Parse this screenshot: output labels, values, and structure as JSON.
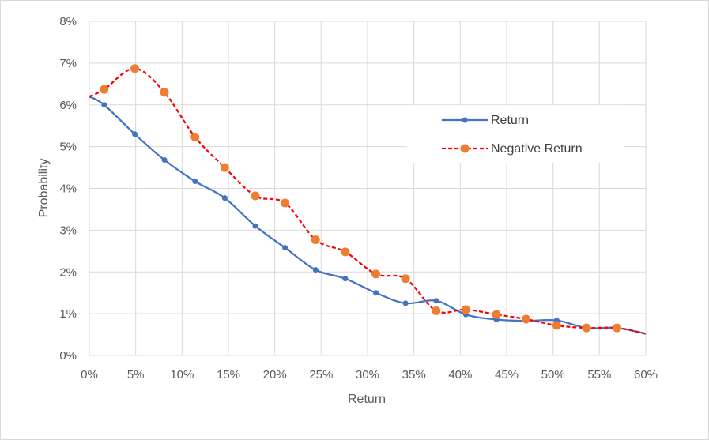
{
  "chart_data": {
    "type": "line",
    "title": "",
    "xlabel": "Return",
    "ylabel": "Probability",
    "xlim": [
      0,
      0.6
    ],
    "ylim": [
      0,
      0.08
    ],
    "x_ticks": [
      0,
      0.05,
      0.1,
      0.15,
      0.2,
      0.25,
      0.3,
      0.35,
      0.4,
      0.45,
      0.5,
      0.55,
      0.6
    ],
    "x_tick_labels": [
      "0%",
      "5%",
      "10%",
      "15%",
      "20%",
      "25%",
      "30%",
      "35%",
      "40%",
      "45%",
      "50%",
      "55%",
      "60%"
    ],
    "y_ticks": [
      0,
      0.01,
      0.02,
      0.03,
      0.04,
      0.05,
      0.06,
      0.07,
      0.08
    ],
    "y_tick_labels": [
      "0%",
      "1%",
      "2%",
      "3%",
      "4%",
      "5%",
      "6%",
      "7%",
      "8%"
    ],
    "grid": true,
    "legend_position": "right",
    "series": [
      {
        "name": "Return",
        "color": "#4472c4",
        "style": "solid",
        "marker": "small-circle",
        "line_start": [
          0,
          0.062
        ],
        "line_end": [
          0.6,
          0.0052
        ],
        "x": [
          0.016,
          0.049,
          0.081,
          0.114,
          0.146,
          0.179,
          0.211,
          0.244,
          0.276,
          0.309,
          0.341,
          0.374,
          0.406,
          0.439,
          0.471,
          0.504,
          0.536,
          0.569
        ],
        "values": [
          0.06,
          0.053,
          0.0468,
          0.0417,
          0.0377,
          0.031,
          0.0258,
          0.0205,
          0.0184,
          0.015,
          0.0125,
          0.0131,
          0.0098,
          0.0086,
          0.0083,
          0.0084,
          0.0066,
          0.0066
        ]
      },
      {
        "name": "Negative Return",
        "color": "#ff0000",
        "marker_color": "#ed7d31",
        "style": "dashed",
        "marker": "large-circle",
        "line_start": [
          0,
          0.062
        ],
        "line_end": [
          0.6,
          0.0052
        ],
        "x": [
          0.016,
          0.049,
          0.081,
          0.114,
          0.146,
          0.179,
          0.211,
          0.244,
          0.276,
          0.309,
          0.341,
          0.374,
          0.406,
          0.439,
          0.471,
          0.504,
          0.536,
          0.569
        ],
        "values": [
          0.0637,
          0.0687,
          0.063,
          0.0523,
          0.045,
          0.0382,
          0.0365,
          0.0277,
          0.0248,
          0.0195,
          0.0184,
          0.0107,
          0.011,
          0.0098,
          0.0087,
          0.0072,
          0.0066,
          0.0066
        ]
      }
    ]
  }
}
